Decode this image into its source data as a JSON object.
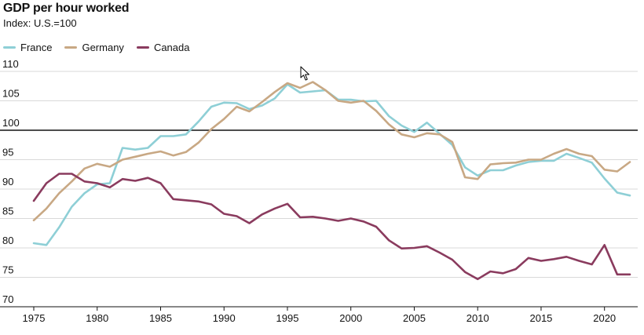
{
  "chart_data": {
    "type": "line",
    "title": "GDP per hour worked",
    "subtitle": "Index: U.S.=100",
    "reference_line": 100,
    "ylim": [
      70,
      110
    ],
    "xlim": [
      1975,
      2022
    ],
    "y_ticks": [
      70,
      75,
      80,
      85,
      90,
      95,
      100,
      105,
      110
    ],
    "x_ticks": [
      1975,
      1980,
      1985,
      1990,
      1995,
      2000,
      2005,
      2010,
      2015,
      2020
    ],
    "x": [
      1975,
      1976,
      1977,
      1978,
      1979,
      1980,
      1981,
      1982,
      1983,
      1984,
      1985,
      1986,
      1987,
      1988,
      1989,
      1990,
      1991,
      1992,
      1993,
      1994,
      1995,
      1996,
      1997,
      1998,
      1999,
      2000,
      2001,
      2002,
      2003,
      2004,
      2005,
      2006,
      2007,
      2008,
      2009,
      2010,
      2011,
      2012,
      2013,
      2014,
      2015,
      2016,
      2017,
      2018,
      2019,
      2020,
      2021,
      2022
    ],
    "series": [
      {
        "name": "France",
        "color": "#8ecfd6",
        "values": [
          80.8,
          80.5,
          83.5,
          87.0,
          89.3,
          90.8,
          91.0,
          97.0,
          96.7,
          97.0,
          99.0,
          99.0,
          99.3,
          101.5,
          104.0,
          104.7,
          104.6,
          103.6,
          104.2,
          105.4,
          107.8,
          106.4,
          106.6,
          106.8,
          105.2,
          105.2,
          104.9,
          105.0,
          102.4,
          100.8,
          99.7,
          101.3,
          99.4,
          97.5,
          93.7,
          92.3,
          93.2,
          93.2,
          94.0,
          94.6,
          94.8,
          94.8,
          96.0,
          95.3,
          94.5,
          91.8,
          89.4,
          88.9
        ]
      },
      {
        "name": "Germany",
        "color": "#c8a884",
        "values": [
          84.7,
          86.7,
          89.3,
          91.3,
          93.5,
          94.3,
          93.8,
          95.0,
          95.5,
          96.0,
          96.4,
          95.7,
          96.3,
          97.9,
          100.2,
          101.9,
          104.0,
          103.2,
          104.8,
          106.5,
          108.0,
          107.2,
          108.2,
          106.8,
          105.0,
          104.7,
          105.0,
          103.3,
          101.0,
          99.3,
          98.8,
          99.5,
          99.3,
          98.0,
          92.0,
          91.7,
          94.2,
          94.4,
          94.5,
          95.0,
          95.0,
          96.0,
          96.8,
          96.0,
          95.6,
          93.3,
          93.0,
          94.6
        ]
      },
      {
        "name": "Canada",
        "color": "#8a3b5e",
        "values": [
          88.0,
          91.0,
          92.6,
          92.6,
          91.3,
          91.0,
          90.3,
          91.7,
          91.4,
          91.9,
          91.0,
          88.3,
          88.1,
          87.9,
          87.4,
          85.8,
          85.4,
          84.2,
          85.7,
          86.7,
          87.5,
          85.2,
          85.3,
          85.0,
          84.6,
          85.0,
          84.5,
          83.6,
          81.3,
          79.9,
          80.0,
          80.3,
          79.2,
          78.0,
          75.9,
          74.7,
          76.0,
          75.7,
          76.4,
          78.3,
          77.8,
          78.1,
          78.5,
          77.8,
          77.2,
          80.5,
          75.5,
          75.5
        ]
      }
    ]
  }
}
